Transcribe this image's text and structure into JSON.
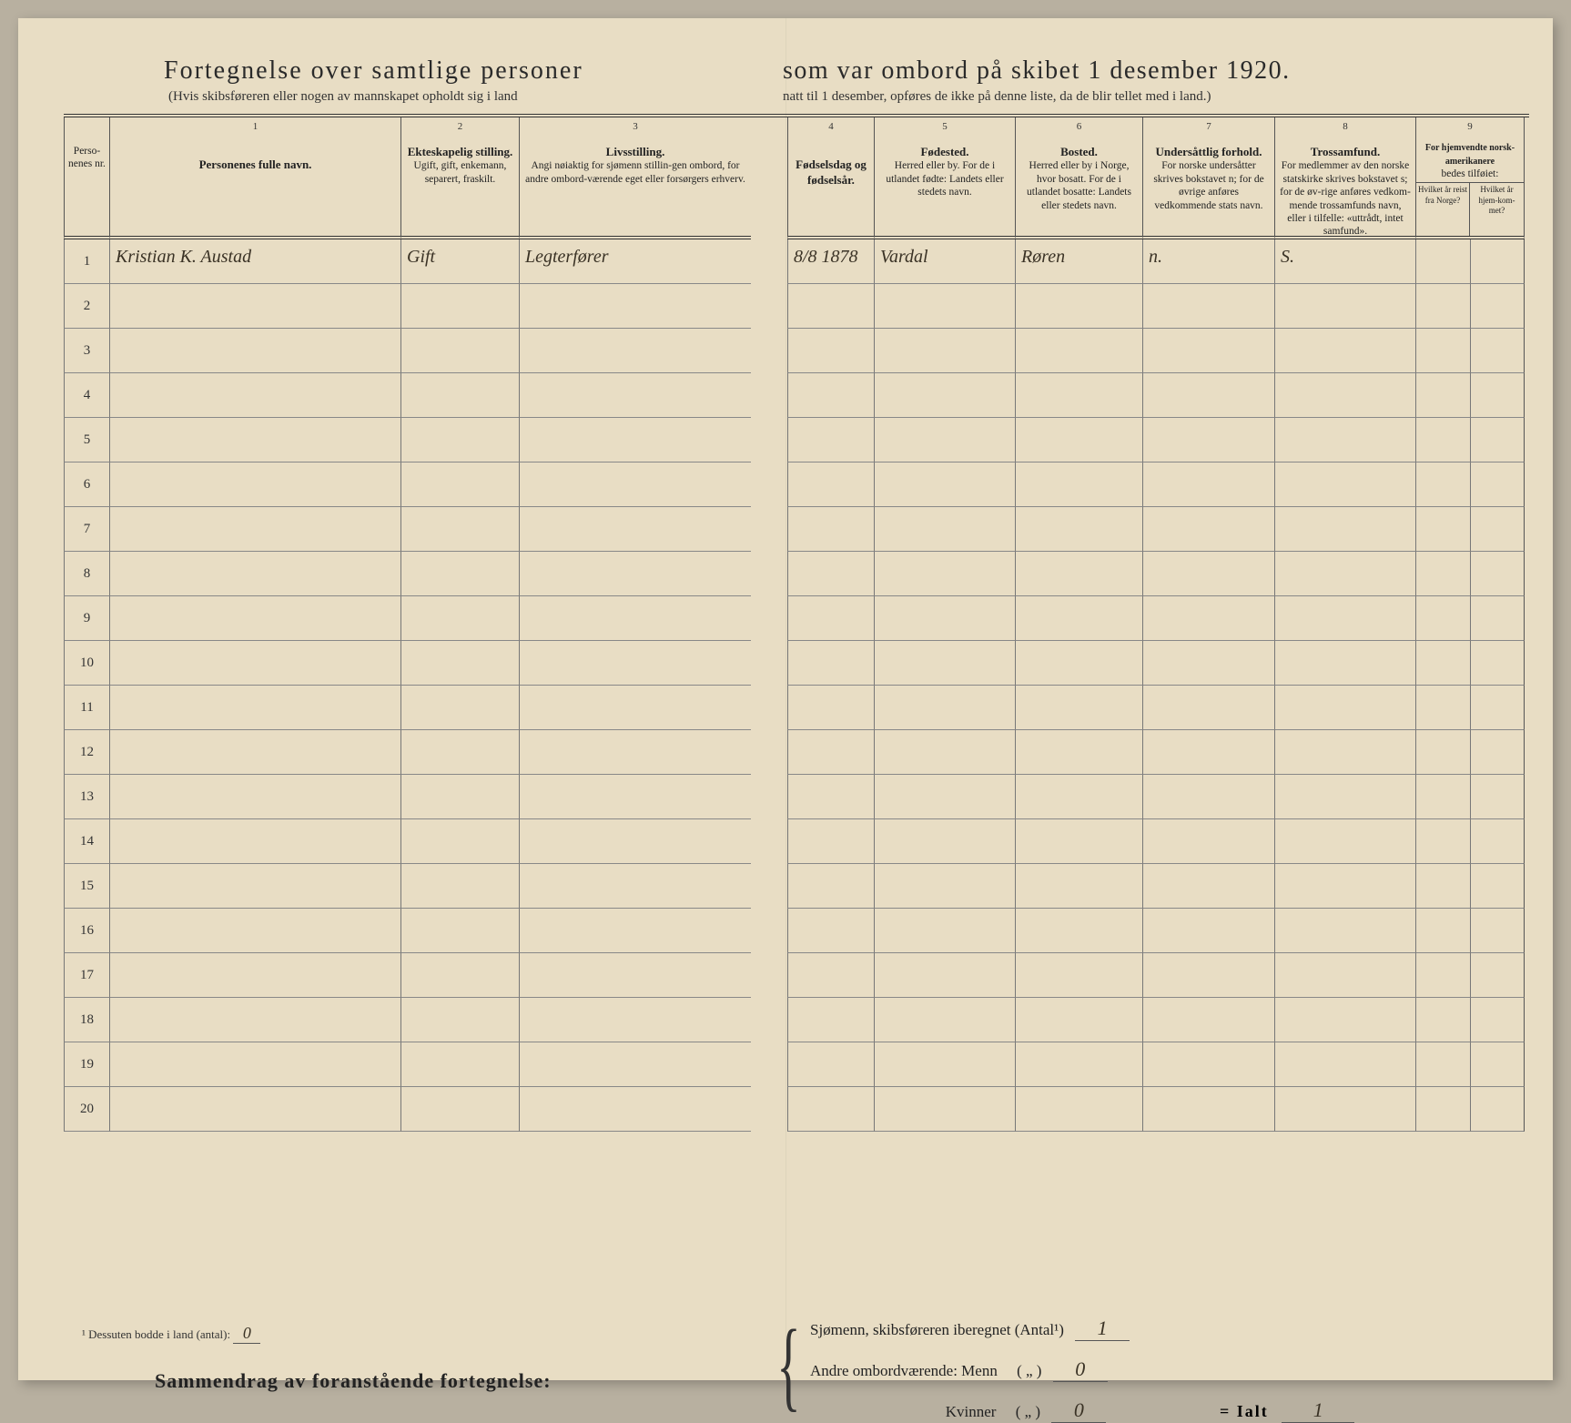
{
  "title_left": "Fortegnelse over samtlige personer",
  "title_right": "som var ombord på skibet 1 desember 1920.",
  "subtitle_left": "(Hvis skibsføreren eller nogen av mannskapet opholdt sig i land",
  "subtitle_right": "natt til 1 desember, opføres de ikke på denne liste, da de blir tellet med i land.)",
  "col_numbers": [
    "",
    "1",
    "2",
    "3",
    "",
    "4",
    "5",
    "6",
    "7",
    "8",
    "9"
  ],
  "headers": {
    "c0": "Perso-\nnenes\nnr.",
    "c1": "Personenes fulle navn.",
    "c2t": "Ekteskapelig stilling.",
    "c2": "Ugift, gift, enkemann, separert, fraskilt.",
    "c3t": "Livsstilling.",
    "c3": "Angi nøiaktig for sjømenn stillin-gen ombord, for andre ombord-værende eget eller forsørgers erhverv.",
    "c4": "Fødselsdag og fødselsår.",
    "c5t": "Fødested.",
    "c5": "Herred eller by. For de i utlandet fødte: Landets eller stedets navn.",
    "c6t": "Bosted.",
    "c6": "Herred eller by i Norge, hvor bosatt. For de i utlandet bosatte: Landets eller stedets navn.",
    "c7t": "Undersåttlig forhold.",
    "c7": "For norske undersåtter skrives bokstavet n; for de øvrige anføres vedkommende stats navn.",
    "c8t": "Trossamfund.",
    "c8": "For medlemmer av den norske statskirke skrives bokstavet s; for de øv-rige anføres vedkom-mende trossamfunds navn, eller i tilfelle: «uttrådt, intet samfund».",
    "c9t": "For hjemvendte norsk-amerikanere",
    "c9": "bedes tilføiet:",
    "c9a": "Hvilket år reist fra Norge?",
    "c9b": "Hvilket år hjem-kom-met?"
  },
  "rows": [
    {
      "nr": "1",
      "navn": "Kristian K. Austad",
      "ekt": "Gift",
      "livs": "Legterfører",
      "fdag": "8/8 1878",
      "fsted": "Vardal",
      "bosted": "Røren",
      "und": "n.",
      "tros": "S.",
      "ra": "",
      "rb": ""
    },
    {
      "nr": "2",
      "navn": "",
      "ekt": "",
      "livs": "",
      "fdag": "",
      "fsted": "",
      "bosted": "",
      "und": "",
      "tros": "",
      "ra": "",
      "rb": ""
    },
    {
      "nr": "3",
      "navn": "",
      "ekt": "",
      "livs": "",
      "fdag": "",
      "fsted": "",
      "bosted": "",
      "und": "",
      "tros": "",
      "ra": "",
      "rb": ""
    },
    {
      "nr": "4",
      "navn": "",
      "ekt": "",
      "livs": "",
      "fdag": "",
      "fsted": "",
      "bosted": "",
      "und": "",
      "tros": "",
      "ra": "",
      "rb": ""
    },
    {
      "nr": "5",
      "navn": "",
      "ekt": "",
      "livs": "",
      "fdag": "",
      "fsted": "",
      "bosted": "",
      "und": "",
      "tros": "",
      "ra": "",
      "rb": ""
    },
    {
      "nr": "6",
      "navn": "",
      "ekt": "",
      "livs": "",
      "fdag": "",
      "fsted": "",
      "bosted": "",
      "und": "",
      "tros": "",
      "ra": "",
      "rb": ""
    },
    {
      "nr": "7",
      "navn": "",
      "ekt": "",
      "livs": "",
      "fdag": "",
      "fsted": "",
      "bosted": "",
      "und": "",
      "tros": "",
      "ra": "",
      "rb": ""
    },
    {
      "nr": "8",
      "navn": "",
      "ekt": "",
      "livs": "",
      "fdag": "",
      "fsted": "",
      "bosted": "",
      "und": "",
      "tros": "",
      "ra": "",
      "rb": ""
    },
    {
      "nr": "9",
      "navn": "",
      "ekt": "",
      "livs": "",
      "fdag": "",
      "fsted": "",
      "bosted": "",
      "und": "",
      "tros": "",
      "ra": "",
      "rb": ""
    },
    {
      "nr": "10",
      "navn": "",
      "ekt": "",
      "livs": "",
      "fdag": "",
      "fsted": "",
      "bosted": "",
      "und": "",
      "tros": "",
      "ra": "",
      "rb": ""
    },
    {
      "nr": "11",
      "navn": "",
      "ekt": "",
      "livs": "",
      "fdag": "",
      "fsted": "",
      "bosted": "",
      "und": "",
      "tros": "",
      "ra": "",
      "rb": ""
    },
    {
      "nr": "12",
      "navn": "",
      "ekt": "",
      "livs": "",
      "fdag": "",
      "fsted": "",
      "bosted": "",
      "und": "",
      "tros": "",
      "ra": "",
      "rb": ""
    },
    {
      "nr": "13",
      "navn": "",
      "ekt": "",
      "livs": "",
      "fdag": "",
      "fsted": "",
      "bosted": "",
      "und": "",
      "tros": "",
      "ra": "",
      "rb": ""
    },
    {
      "nr": "14",
      "navn": "",
      "ekt": "",
      "livs": "",
      "fdag": "",
      "fsted": "",
      "bosted": "",
      "und": "",
      "tros": "",
      "ra": "",
      "rb": ""
    },
    {
      "nr": "15",
      "navn": "",
      "ekt": "",
      "livs": "",
      "fdag": "",
      "fsted": "",
      "bosted": "",
      "und": "",
      "tros": "",
      "ra": "",
      "rb": ""
    },
    {
      "nr": "16",
      "navn": "",
      "ekt": "",
      "livs": "",
      "fdag": "",
      "fsted": "",
      "bosted": "",
      "und": "",
      "tros": "",
      "ra": "",
      "rb": ""
    },
    {
      "nr": "17",
      "navn": "",
      "ekt": "",
      "livs": "",
      "fdag": "",
      "fsted": "",
      "bosted": "",
      "und": "",
      "tros": "",
      "ra": "",
      "rb": ""
    },
    {
      "nr": "18",
      "navn": "",
      "ekt": "",
      "livs": "",
      "fdag": "",
      "fsted": "",
      "bosted": "",
      "und": "",
      "tros": "",
      "ra": "",
      "rb": ""
    },
    {
      "nr": "19",
      "navn": "",
      "ekt": "",
      "livs": "",
      "fdag": "",
      "fsted": "",
      "bosted": "",
      "und": "",
      "tros": "",
      "ra": "",
      "rb": ""
    },
    {
      "nr": "20",
      "navn": "",
      "ekt": "",
      "livs": "",
      "fdag": "",
      "fsted": "",
      "bosted": "",
      "und": "",
      "tros": "",
      "ra": "",
      "rb": ""
    }
  ],
  "summary": {
    "title": "Sammendrag av foranstående fortegnelse:",
    "line1_label": "Sjømenn, skibsføreren iberegnet (Antal¹)",
    "line1_val": "1",
    "line2_label": "Andre ombordværende: Menn",
    "line2_paren": "(  „  )",
    "line2_val": "0",
    "line3_label": "Kvinner",
    "line3_paren": "(  „  )",
    "line3_val": "0",
    "ialt_label": "= Ialt",
    "ialt_val": "1"
  },
  "footnote_label": "¹  Dessuten bodde i land (antal):",
  "footnote_val": "0",
  "colors": {
    "paper": "#e8ddc4",
    "ink": "#2a2a2a",
    "rule": "#555",
    "handwriting": "#3a3225"
  }
}
